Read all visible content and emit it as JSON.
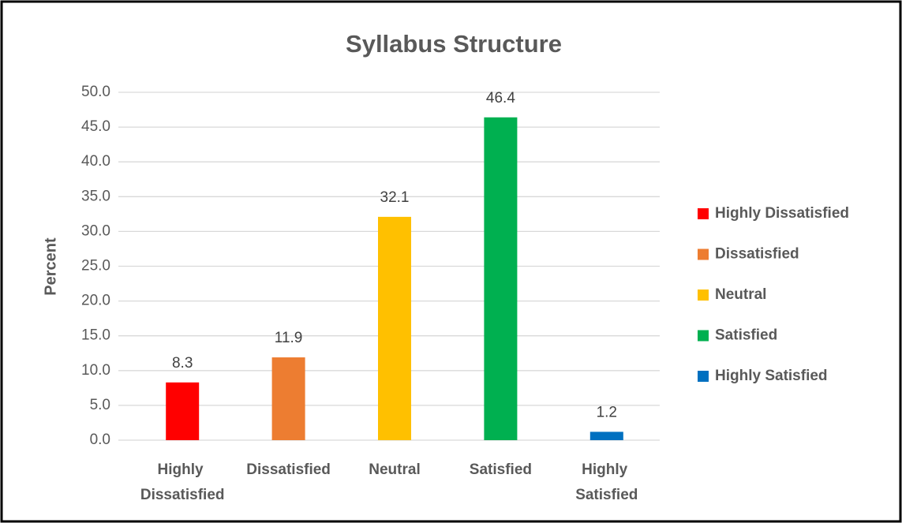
{
  "chart_data": {
    "type": "bar",
    "title": "Syllabus Structure",
    "y_label": "Percent",
    "categories": [
      "Highly Dissatisfied",
      "Dissatisfied",
      "Neutral",
      "Satisfied",
      "Highly Satisfied"
    ],
    "values": [
      8.3,
      11.9,
      32.1,
      46.4,
      1.2
    ],
    "colors": [
      "#ff0000",
      "#ed7d31",
      "#ffc000",
      "#00b050",
      "#0070c0"
    ],
    "ylim": [
      0,
      50
    ],
    "yticks": [
      {
        "value": 0,
        "label": "0.0"
      },
      {
        "value": 5,
        "label": "5.0"
      },
      {
        "value": 10,
        "label": "10.0"
      },
      {
        "value": 15,
        "label": "15.0"
      },
      {
        "value": 20,
        "label": "20.0"
      },
      {
        "value": 25,
        "label": "25.0"
      },
      {
        "value": 30,
        "label": "30.0"
      },
      {
        "value": 35,
        "label": "35.0"
      },
      {
        "value": 40,
        "label": "40.0"
      },
      {
        "value": 45,
        "label": "45.0"
      },
      {
        "value": 50,
        "label": "50.0"
      }
    ],
    "grid": true,
    "legend": "right"
  }
}
